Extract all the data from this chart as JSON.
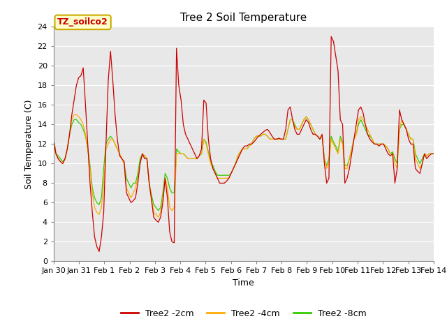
{
  "title": "Tree 2 Soil Temperature",
  "xlabel": "Time",
  "ylabel": "Soil Temperature (C)",
  "ylim": [
    0,
    24
  ],
  "yticks": [
    0,
    2,
    4,
    6,
    8,
    10,
    12,
    14,
    16,
    18,
    20,
    22,
    24
  ],
  "xtick_labels": [
    "Jan 30",
    "Jan 31",
    "Feb 1",
    "Feb 2",
    "Feb 3",
    "Feb 4",
    "Feb 5",
    "Feb 6",
    "Feb 7",
    "Feb 8",
    "Feb 9",
    "Feb 10",
    "Feb 11",
    "Feb 12",
    "Feb 13",
    "Feb 14"
  ],
  "legend_labels": [
    "Tree2 -2cm",
    "Tree2 -4cm",
    "Tree2 -8cm"
  ],
  "line_colors": [
    "#cc0000",
    "#ffaa00",
    "#33cc00"
  ],
  "annotation_text": "TZ_soilco2",
  "annotation_color": "#cc0000",
  "annotation_bg": "#ffffcc",
  "annotation_edge": "#ccaa00",
  "bg_color": "#e8e8e8",
  "grid_color": "#ffffff",
  "title_fontsize": 11,
  "label_fontsize": 9,
  "tick_fontsize": 8,
  "series_2cm": [
    12.5,
    11.0,
    10.5,
    10.2,
    10.0,
    10.5,
    11.5,
    13.0,
    15.0,
    16.5,
    18.0,
    18.8,
    19.0,
    19.8,
    16.0,
    12.0,
    8.0,
    5.0,
    2.5,
    1.5,
    1.0,
    2.5,
    5.0,
    12.0,
    18.5,
    21.5,
    18.5,
    15.0,
    12.5,
    10.8,
    10.5,
    10.2,
    7.0,
    6.5,
    6.0,
    6.2,
    6.5,
    8.0,
    10.0,
    11.0,
    10.5,
    10.5,
    8.0,
    6.3,
    4.5,
    4.2,
    4.0,
    4.5,
    6.0,
    8.5,
    6.5,
    3.0,
    2.0,
    1.9,
    21.8,
    18.0,
    16.5,
    14.0,
    13.0,
    12.5,
    12.0,
    11.5,
    11.0,
    10.5,
    10.8,
    11.5,
    16.5,
    16.2,
    12.5,
    10.5,
    9.5,
    9.0,
    8.5,
    8.0,
    8.0,
    8.0,
    8.2,
    8.5,
    9.0,
    9.5,
    10.0,
    10.5,
    11.0,
    11.5,
    11.8,
    11.8,
    12.0,
    12.0,
    12.2,
    12.5,
    12.8,
    13.0,
    13.2,
    13.4,
    13.5,
    13.2,
    12.8,
    12.5,
    12.5,
    12.6,
    12.5,
    12.5,
    13.5,
    15.5,
    15.8,
    14.5,
    13.5,
    13.0,
    13.0,
    13.5,
    14.0,
    14.5,
    14.2,
    13.5,
    13.0,
    13.0,
    12.8,
    12.5,
    13.0,
    10.0,
    8.0,
    8.5,
    23.0,
    22.5,
    21.0,
    19.5,
    14.5,
    14.0,
    8.0,
    8.5,
    9.5,
    11.0,
    12.5,
    14.0,
    15.5,
    15.8,
    15.2,
    14.0,
    13.0,
    12.5,
    12.2,
    12.0,
    12.0,
    11.8,
    12.0,
    12.0,
    11.5,
    11.0,
    10.8,
    11.0,
    8.0,
    9.5,
    15.5,
    14.5,
    14.0,
    13.5,
    12.5,
    12.0,
    12.0,
    9.5,
    9.2,
    9.0,
    10.0,
    11.0,
    10.5,
    10.8,
    11.0,
    11.0
  ],
  "series_4cm": [
    12.5,
    11.0,
    10.5,
    10.2,
    10.0,
    10.5,
    11.5,
    13.0,
    14.5,
    15.0,
    15.0,
    14.8,
    14.5,
    14.0,
    13.0,
    11.5,
    9.5,
    7.0,
    5.5,
    5.0,
    4.8,
    5.5,
    8.0,
    11.5,
    12.0,
    12.5,
    12.5,
    12.0,
    11.5,
    11.0,
    10.5,
    10.0,
    7.5,
    7.0,
    6.5,
    7.0,
    7.5,
    8.5,
    10.0,
    11.0,
    10.8,
    10.5,
    8.0,
    6.5,
    5.0,
    4.8,
    4.5,
    5.0,
    6.5,
    8.5,
    7.5,
    5.5,
    5.2,
    5.5,
    11.0,
    11.0,
    11.0,
    11.0,
    10.8,
    10.5,
    10.5,
    10.5,
    10.5,
    10.5,
    10.8,
    11.0,
    12.5,
    12.0,
    11.0,
    10.0,
    9.5,
    9.0,
    8.5,
    8.5,
    8.5,
    8.5,
    8.5,
    8.5,
    9.0,
    9.5,
    10.0,
    10.8,
    11.2,
    11.5,
    11.5,
    11.5,
    11.8,
    12.0,
    12.5,
    12.8,
    12.8,
    12.8,
    13.0,
    13.0,
    12.8,
    12.5,
    12.5,
    12.5,
    12.5,
    12.5,
    12.5,
    12.5,
    12.5,
    13.5,
    14.5,
    14.5,
    13.8,
    13.5,
    13.5,
    14.0,
    14.5,
    14.8,
    14.5,
    14.0,
    13.5,
    13.0,
    12.8,
    12.5,
    12.8,
    10.5,
    9.5,
    10.0,
    12.5,
    12.0,
    11.5,
    11.0,
    12.5,
    12.0,
    9.5,
    9.5,
    10.5,
    11.5,
    12.5,
    13.0,
    14.5,
    14.8,
    14.5,
    14.0,
    13.5,
    13.0,
    12.5,
    12.0,
    12.0,
    12.0,
    12.0,
    12.0,
    11.8,
    11.5,
    11.0,
    11.0,
    10.0,
    9.5,
    13.5,
    14.5,
    14.0,
    13.5,
    13.0,
    12.5,
    12.5,
    10.5,
    10.0,
    9.5,
    10.0,
    11.0,
    10.8,
    11.0,
    11.0,
    11.0
  ],
  "series_8cm": [
    12.5,
    11.0,
    10.8,
    10.5,
    10.2,
    10.5,
    11.5,
    13.0,
    14.0,
    14.5,
    14.5,
    14.2,
    14.0,
    13.5,
    12.8,
    11.5,
    9.8,
    7.5,
    6.5,
    6.0,
    5.8,
    6.5,
    9.5,
    12.0,
    12.5,
    12.8,
    12.5,
    12.0,
    11.5,
    11.0,
    10.5,
    10.0,
    8.5,
    8.0,
    7.5,
    8.0,
    8.0,
    9.0,
    10.5,
    11.0,
    10.8,
    10.5,
    8.0,
    6.8,
    5.8,
    5.5,
    5.2,
    5.5,
    7.0,
    9.0,
    8.5,
    7.5,
    7.0,
    7.0,
    11.5,
    11.2,
    11.0,
    11.0,
    10.8,
    10.5,
    10.5,
    10.5,
    10.5,
    10.5,
    10.8,
    11.0,
    12.5,
    12.2,
    11.2,
    10.2,
    9.8,
    9.2,
    8.8,
    8.8,
    8.8,
    8.8,
    8.8,
    8.8,
    9.0,
    9.5,
    10.0,
    10.8,
    11.2,
    11.5,
    11.5,
    11.5,
    11.8,
    12.0,
    12.5,
    12.8,
    12.8,
    12.8,
    13.0,
    13.0,
    12.8,
    12.5,
    12.5,
    12.5,
    12.5,
    12.5,
    12.5,
    12.5,
    12.5,
    13.5,
    14.5,
    14.5,
    14.0,
    13.5,
    13.5,
    14.0,
    14.5,
    14.8,
    14.5,
    14.0,
    13.5,
    13.0,
    12.8,
    12.5,
    12.8,
    10.5,
    9.8,
    10.5,
    12.8,
    12.2,
    11.8,
    11.2,
    12.8,
    12.2,
    9.8,
    9.8,
    10.5,
    11.5,
    12.5,
    13.0,
    14.0,
    14.5,
    14.0,
    13.5,
    13.0,
    12.8,
    12.5,
    12.0,
    12.0,
    12.0,
    12.0,
    12.0,
    11.8,
    11.5,
    11.0,
    11.2,
    10.5,
    10.0,
    13.5,
    14.0,
    14.0,
    13.5,
    13.0,
    12.5,
    12.5,
    11.0,
    10.5,
    10.0,
    10.5,
    11.0,
    10.8,
    11.0,
    11.0,
    11.0
  ]
}
